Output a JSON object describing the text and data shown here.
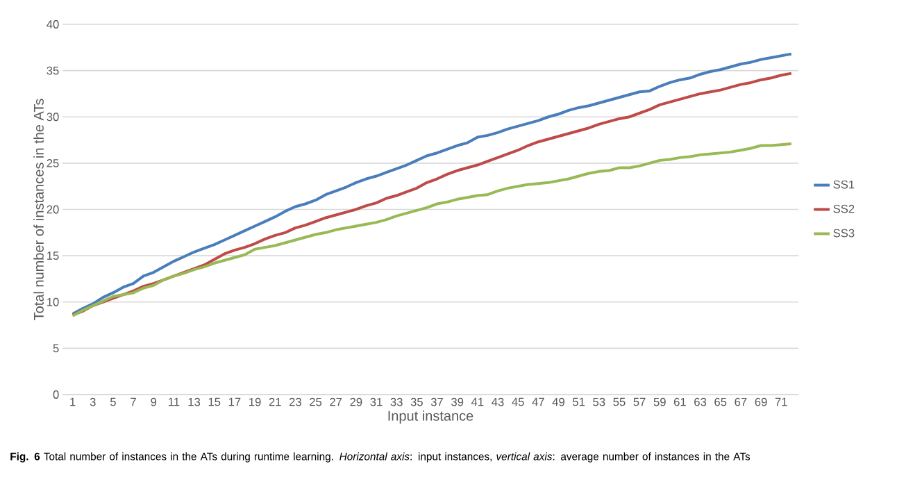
{
  "chart_data": {
    "type": "line",
    "xlabel": "Input instance",
    "ylabel": "Total number of instances in the ATs",
    "annotations": [
      "**Fig. 6** Total number of instances in the ATs during runtime learning. *Horizontal axis*: input instances, *vertical axis*: average number of instances in the ATs"
    ],
    "categories": [
      "1",
      null,
      "3",
      null,
      "5",
      null,
      "7",
      null,
      "9",
      null,
      "11",
      null,
      "13",
      null,
      "15",
      null,
      "17",
      null,
      "19",
      null,
      "21",
      null,
      "23",
      null,
      "25",
      null,
      "27",
      null,
      "29",
      null,
      "31",
      null,
      "33",
      null,
      "35",
      null,
      "37",
      null,
      "39",
      null,
      "41",
      null,
      "43",
      null,
      "45",
      null,
      "47",
      null,
      "49",
      null,
      "51",
      null,
      "53",
      null,
      "55",
      null,
      "57",
      null,
      "59",
      null,
      "61",
      null,
      "63",
      null,
      "65",
      null,
      "67",
      null,
      "69",
      null,
      "71",
      null
    ],
    "series": [
      {
        "name": "SS1",
        "color": "#4a7ebb",
        "values": [
          8.7,
          9.3,
          9.8,
          10.5,
          11.0,
          11.6,
          12.0,
          12.8,
          13.2,
          13.8,
          14.4,
          14.9,
          15.4,
          15.8,
          16.2,
          16.7,
          17.2,
          17.7,
          18.2,
          18.7,
          19.2,
          19.8,
          20.3,
          20.6,
          21.0,
          21.6,
          22.0,
          22.4,
          22.9,
          23.3,
          23.6,
          24.0,
          24.4,
          24.8,
          25.3,
          25.8,
          26.1,
          26.5,
          26.9,
          27.2,
          27.8,
          28.0,
          28.3,
          28.7,
          29.0,
          29.3,
          29.6,
          30.0,
          30.3,
          30.7,
          31.0,
          31.2,
          31.5,
          31.8,
          32.1,
          32.4,
          32.7,
          32.8,
          33.3,
          33.7,
          34.0,
          34.2,
          34.6,
          34.9,
          35.1,
          35.4,
          35.7,
          35.9,
          36.2,
          36.4,
          36.6,
          36.8
        ]
      },
      {
        "name": "SS2",
        "color": "#be4b48",
        "values": [
          8.6,
          9.0,
          9.6,
          10.0,
          10.4,
          10.8,
          11.2,
          11.7,
          12.0,
          12.4,
          12.8,
          13.2,
          13.6,
          14.0,
          14.6,
          15.2,
          15.6,
          15.9,
          16.3,
          16.8,
          17.2,
          17.5,
          18.0,
          18.3,
          18.7,
          19.1,
          19.4,
          19.7,
          20.0,
          20.4,
          20.7,
          21.2,
          21.5,
          21.9,
          22.3,
          22.9,
          23.3,
          23.8,
          24.2,
          24.5,
          24.8,
          25.2,
          25.6,
          26.0,
          26.4,
          26.9,
          27.3,
          27.6,
          27.9,
          28.2,
          28.5,
          28.8,
          29.2,
          29.5,
          29.8,
          30.0,
          30.4,
          30.8,
          31.3,
          31.6,
          31.9,
          32.2,
          32.5,
          32.7,
          32.9,
          33.2,
          33.5,
          33.7,
          34.0,
          34.2,
          34.5,
          34.7
        ]
      },
      {
        "name": "SS3",
        "color": "#98b954",
        "values": [
          8.5,
          9.1,
          9.6,
          10.1,
          10.6,
          10.8,
          11.0,
          11.5,
          11.8,
          12.4,
          12.8,
          13.1,
          13.5,
          13.8,
          14.2,
          14.5,
          14.8,
          15.1,
          15.7,
          15.9,
          16.1,
          16.4,
          16.7,
          17.0,
          17.3,
          17.5,
          17.8,
          18.0,
          18.2,
          18.4,
          18.6,
          18.9,
          19.3,
          19.6,
          19.9,
          20.2,
          20.6,
          20.8,
          21.1,
          21.3,
          21.5,
          21.6,
          22.0,
          22.3,
          22.5,
          22.7,
          22.8,
          22.9,
          23.1,
          23.3,
          23.6,
          23.9,
          24.1,
          24.2,
          24.5,
          24.5,
          24.7,
          25.0,
          25.3,
          25.4,
          25.6,
          25.7,
          25.9,
          26.0,
          26.1,
          26.2,
          26.4,
          26.6,
          26.9,
          26.9,
          27.0,
          27.1
        ]
      }
    ],
    "ylim": [
      0,
      40
    ],
    "yticks": [
      0,
      5,
      10,
      15,
      20,
      25,
      30,
      35,
      40
    ],
    "grid": "y",
    "legend": "right",
    "marker": "none",
    "line_style": "solid"
  }
}
